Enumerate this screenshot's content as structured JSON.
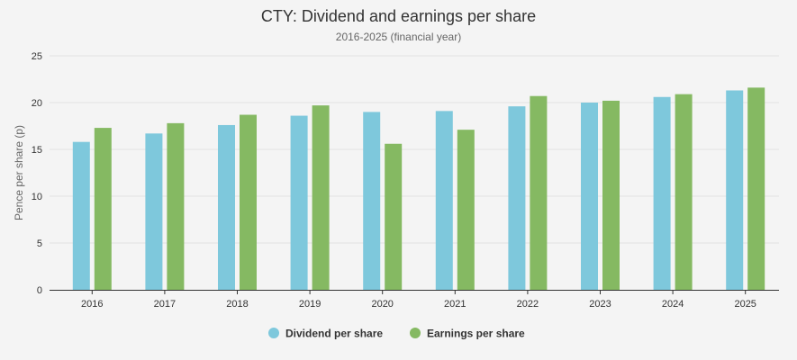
{
  "chart_data": {
    "type": "bar",
    "title": "CTY: Dividend and earnings per share",
    "subtitle": "2016-2025 (financial year)",
    "xlabel": "",
    "ylabel": "Pence per share (p)",
    "ylim": [
      0,
      25
    ],
    "yticks": [
      0,
      5,
      10,
      15,
      20,
      25
    ],
    "grid": true,
    "legend": "bottom-center",
    "categories": [
      "2016",
      "2017",
      "2018",
      "2019",
      "2020",
      "2021",
      "2022",
      "2023",
      "2024",
      "2025"
    ],
    "series": [
      {
        "name": "Dividend per share",
        "color": "#7ec8dc",
        "values": [
          15.8,
          16.7,
          17.6,
          18.6,
          19.0,
          19.1,
          19.6,
          20.0,
          20.6,
          21.3
        ]
      },
      {
        "name": "Earnings per share",
        "color": "#85b962",
        "values": [
          17.3,
          17.8,
          18.7,
          19.7,
          15.6,
          17.1,
          20.7,
          20.2,
          20.9,
          21.6
        ]
      }
    ]
  }
}
